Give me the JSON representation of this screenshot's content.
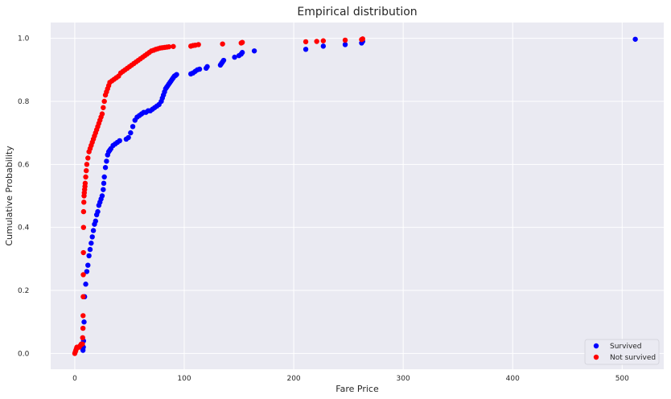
{
  "chart_data": {
    "type": "scatter",
    "title": "Empirical distribution",
    "xlabel": "Fare Price",
    "ylabel": "Cumulative Probability",
    "xlim": [
      -22,
      538
    ],
    "ylim": [
      -0.05,
      1.05
    ],
    "xticks": [
      0,
      100,
      200,
      300,
      400,
      500
    ],
    "yticks": [
      0.0,
      0.2,
      0.4,
      0.6,
      0.8,
      1.0
    ],
    "grid": true,
    "legend_position": "bottom-right",
    "colors": {
      "plot_bg": "#eaeaf2",
      "grid": "#ffffff"
    },
    "series": [
      {
        "name": "Survived",
        "color": "#0000ff",
        "x": [
          7.5,
          7.8,
          8,
          8.5,
          9,
          10,
          11,
          12,
          13,
          14,
          15,
          16,
          17,
          18,
          19,
          20,
          21,
          22,
          23,
          24,
          25,
          26,
          26.5,
          27,
          28,
          29,
          30,
          31,
          32,
          33,
          35,
          37,
          39,
          41,
          47,
          49,
          51,
          53,
          55,
          57,
          59,
          61,
          63,
          65,
          67,
          69,
          71,
          73,
          75,
          77,
          79,
          80,
          81,
          82,
          83,
          84,
          85,
          86,
          87,
          88,
          89,
          90,
          91,
          92,
          93,
          106,
          108,
          110,
          112,
          114,
          120,
          121,
          133,
          134,
          135,
          136,
          146,
          150,
          152,
          153,
          164,
          211,
          227,
          247,
          262,
          263,
          512
        ],
        "y": [
          0.01,
          0.02,
          0.04,
          0.1,
          0.18,
          0.22,
          0.26,
          0.28,
          0.31,
          0.33,
          0.35,
          0.37,
          0.39,
          0.41,
          0.42,
          0.44,
          0.45,
          0.47,
          0.48,
          0.49,
          0.5,
          0.52,
          0.54,
          0.56,
          0.59,
          0.61,
          0.63,
          0.64,
          0.645,
          0.65,
          0.66,
          0.665,
          0.67,
          0.675,
          0.68,
          0.685,
          0.7,
          0.72,
          0.74,
          0.75,
          0.755,
          0.76,
          0.765,
          0.765,
          0.77,
          0.77,
          0.775,
          0.78,
          0.785,
          0.79,
          0.8,
          0.81,
          0.82,
          0.83,
          0.84,
          0.845,
          0.85,
          0.855,
          0.86,
          0.865,
          0.87,
          0.875,
          0.88,
          0.882,
          0.885,
          0.887,
          0.89,
          0.895,
          0.9,
          0.902,
          0.905,
          0.91,
          0.915,
          0.92,
          0.925,
          0.93,
          0.94,
          0.945,
          0.95,
          0.955,
          0.96,
          0.965,
          0.975,
          0.98,
          0.985,
          0.99,
          0.997
        ]
      },
      {
        "name": "Not survived",
        "color": "#ff0000",
        "x": [
          0,
          0.5,
          1,
          1.5,
          2,
          4,
          5,
          6,
          7,
          7.2,
          7.5,
          7.6,
          7.7,
          7.8,
          7.9,
          8,
          8.05,
          8.3,
          8.5,
          8.7,
          9,
          9.3,
          9.5,
          10,
          10.5,
          11,
          12,
          13,
          14,
          15,
          16,
          17,
          18,
          19,
          20,
          21,
          22,
          23,
          24,
          25,
          26,
          27,
          28,
          29,
          30,
          31,
          32,
          34,
          36,
          38,
          40,
          42,
          44,
          46,
          48,
          50,
          52,
          54,
          56,
          58,
          60,
          62,
          64,
          66,
          68,
          70,
          72,
          74,
          76,
          78,
          80,
          82,
          84,
          86,
          90,
          106,
          108,
          110,
          113,
          135,
          152,
          153,
          211,
          221,
          227,
          247,
          262,
          263
        ],
        "y": [
          0.0,
          0.005,
          0.01,
          0.015,
          0.02,
          0.02,
          0.025,
          0.03,
          0.03,
          0.05,
          0.08,
          0.12,
          0.18,
          0.25,
          0.32,
          0.4,
          0.45,
          0.48,
          0.5,
          0.51,
          0.52,
          0.53,
          0.54,
          0.56,
          0.58,
          0.6,
          0.62,
          0.64,
          0.65,
          0.66,
          0.67,
          0.68,
          0.69,
          0.7,
          0.71,
          0.72,
          0.73,
          0.74,
          0.75,
          0.76,
          0.78,
          0.8,
          0.82,
          0.83,
          0.84,
          0.85,
          0.86,
          0.865,
          0.87,
          0.875,
          0.88,
          0.89,
          0.895,
          0.9,
          0.905,
          0.91,
          0.915,
          0.92,
          0.925,
          0.93,
          0.935,
          0.94,
          0.945,
          0.95,
          0.955,
          0.96,
          0.962,
          0.965,
          0.967,
          0.969,
          0.97,
          0.971,
          0.972,
          0.973,
          0.974,
          0.975,
          0.977,
          0.978,
          0.98,
          0.982,
          0.985,
          0.987,
          0.989,
          0.99,
          0.992,
          0.994,
          0.996,
          0.998
        ]
      }
    ]
  }
}
